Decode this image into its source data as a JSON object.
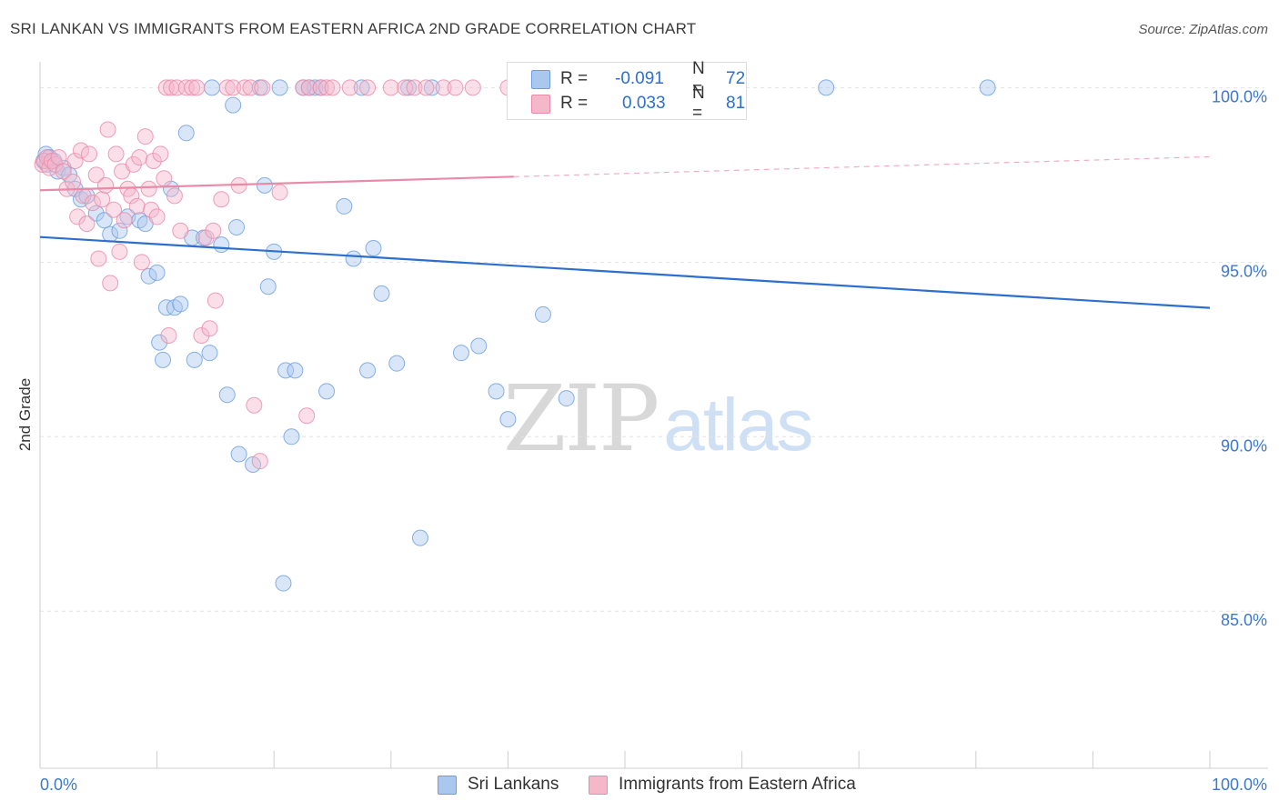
{
  "header": {
    "title": "SRI LANKAN VS IMMIGRANTS FROM EASTERN AFRICA 2ND GRADE CORRELATION CHART",
    "source": "Source: ZipAtlas.com"
  },
  "watermark": {
    "zip": "ZIP",
    "atlas": "atlas"
  },
  "legend": {
    "rows": [
      {
        "label": "R =",
        "r": "-0.091",
        "n_label": "N =",
        "n": "72",
        "color": "#aac8ee"
      },
      {
        "label": "R =",
        "r": "0.033",
        "n_label": "N =",
        "n": "81",
        "color": "#f5b8cb"
      }
    ]
  },
  "chart_data": {
    "type": "scatter",
    "title": "SRI LANKAN VS IMMIGRANTS FROM EASTERN AFRICA 2ND GRADE CORRELATION CHART",
    "xlabel": "",
    "ylabel": "2nd Grade",
    "xlim": [
      0,
      100
    ],
    "ylim": [
      80.5,
      101.0
    ],
    "x_tick_labels": [
      "0.0%",
      "100.0%"
    ],
    "y_ticks": [
      85,
      90,
      95,
      100
    ],
    "y_tick_labels": [
      "85.0%",
      "90.0%",
      "95.0%",
      "100.0%"
    ],
    "grid": true,
    "legend_position": "bottom-center",
    "series": [
      {
        "name": "Sri Lankans",
        "color": "#6a9ee0",
        "fill": "#aac8ee",
        "R": -0.091,
        "N": 72,
        "trend": {
          "x0": 0,
          "y0": 95.72,
          "x1": 100,
          "y1": 93.69,
          "dashed_from": null
        },
        "points": [
          [
            0.3,
            97.9
          ],
          [
            0.5,
            98.1
          ],
          [
            0.6,
            97.8
          ],
          [
            0.8,
            98.0
          ],
          [
            1.2,
            97.9
          ],
          [
            1.5,
            97.6
          ],
          [
            2.0,
            97.7
          ],
          [
            2.5,
            97.5
          ],
          [
            3.0,
            97.1
          ],
          [
            3.5,
            96.8
          ],
          [
            4.0,
            96.9
          ],
          [
            4.8,
            96.4
          ],
          [
            5.5,
            96.2
          ],
          [
            6.0,
            95.8
          ],
          [
            6.8,
            95.9
          ],
          [
            7.5,
            96.3
          ],
          [
            8.5,
            96.2
          ],
          [
            9.0,
            96.1
          ],
          [
            9.3,
            94.6
          ],
          [
            10.0,
            94.7
          ],
          [
            10.2,
            92.7
          ],
          [
            10.5,
            92.2
          ],
          [
            10.8,
            93.7
          ],
          [
            11.2,
            97.1
          ],
          [
            11.5,
            93.7
          ],
          [
            12.0,
            93.8
          ],
          [
            12.5,
            98.7
          ],
          [
            13.0,
            95.7
          ],
          [
            13.2,
            92.2
          ],
          [
            14.0,
            95.7
          ],
          [
            14.5,
            92.4
          ],
          [
            14.7,
            100.0
          ],
          [
            15.5,
            95.5
          ],
          [
            16.0,
            91.2
          ],
          [
            16.5,
            99.5
          ],
          [
            16.8,
            96.0
          ],
          [
            17.0,
            89.5
          ],
          [
            18.2,
            89.2
          ],
          [
            18.8,
            100.0
          ],
          [
            19.2,
            97.2
          ],
          [
            19.5,
            94.3
          ],
          [
            20.0,
            95.3
          ],
          [
            20.5,
            100.0
          ],
          [
            21.0,
            91.9
          ],
          [
            21.5,
            90.0
          ],
          [
            21.8,
            91.9
          ],
          [
            22.5,
            100.0
          ],
          [
            23.0,
            100.0
          ],
          [
            23.5,
            100.0
          ],
          [
            24.0,
            100.0
          ],
          [
            24.5,
            91.3
          ],
          [
            26.0,
            96.6
          ],
          [
            26.8,
            95.1
          ],
          [
            27.5,
            100.0
          ],
          [
            28.0,
            91.9
          ],
          [
            28.5,
            95.4
          ],
          [
            29.2,
            94.1
          ],
          [
            30.5,
            92.1
          ],
          [
            31.5,
            100.0
          ],
          [
            32.5,
            87.1
          ],
          [
            33.5,
            100.0
          ],
          [
            36.0,
            92.4
          ],
          [
            37.5,
            92.6
          ],
          [
            39.0,
            91.3
          ],
          [
            40.0,
            90.5
          ],
          [
            41.0,
            100.0
          ],
          [
            41.5,
            100.0
          ],
          [
            43.0,
            93.5
          ],
          [
            45.0,
            91.1
          ],
          [
            67.2,
            100.0
          ],
          [
            81.0,
            100.0
          ],
          [
            20.8,
            85.8
          ]
        ]
      },
      {
        "name": "Immigrants from Eastern Africa",
        "color": "#e98aa8",
        "fill": "#f5b8cb",
        "R": 0.033,
        "N": 81,
        "trend": {
          "x0": 0,
          "y0": 97.06,
          "x1": 100,
          "y1": 98.02,
          "dashed_from": 40.5
        },
        "points": [
          [
            0.2,
            97.8
          ],
          [
            0.4,
            97.9
          ],
          [
            0.6,
            98.0
          ],
          [
            0.8,
            97.7
          ],
          [
            1.0,
            97.9
          ],
          [
            1.3,
            97.8
          ],
          [
            1.6,
            98.0
          ],
          [
            2.0,
            97.6
          ],
          [
            2.3,
            97.1
          ],
          [
            2.8,
            97.3
          ],
          [
            3.0,
            97.9
          ],
          [
            3.2,
            96.3
          ],
          [
            3.5,
            98.2
          ],
          [
            3.7,
            96.9
          ],
          [
            4.0,
            96.1
          ],
          [
            4.2,
            98.1
          ],
          [
            4.5,
            96.7
          ],
          [
            4.8,
            97.5
          ],
          [
            5.0,
            95.1
          ],
          [
            5.3,
            96.8
          ],
          [
            5.6,
            97.2
          ],
          [
            5.8,
            98.8
          ],
          [
            6.0,
            94.4
          ],
          [
            6.3,
            96.5
          ],
          [
            6.5,
            98.1
          ],
          [
            6.8,
            95.3
          ],
          [
            7.0,
            97.6
          ],
          [
            7.2,
            96.2
          ],
          [
            7.5,
            97.1
          ],
          [
            7.8,
            96.9
          ],
          [
            8.0,
            97.8
          ],
          [
            8.3,
            96.6
          ],
          [
            8.5,
            98.0
          ],
          [
            8.7,
            95.0
          ],
          [
            9.0,
            98.6
          ],
          [
            9.3,
            97.1
          ],
          [
            9.5,
            96.5
          ],
          [
            9.7,
            97.9
          ],
          [
            10.0,
            96.3
          ],
          [
            10.3,
            98.1
          ],
          [
            10.6,
            97.4
          ],
          [
            10.8,
            100.0
          ],
          [
            11.0,
            92.9
          ],
          [
            11.2,
            100.0
          ],
          [
            11.5,
            96.9
          ],
          [
            11.7,
            100.0
          ],
          [
            12.0,
            95.9
          ],
          [
            12.5,
            100.0
          ],
          [
            13.0,
            100.0
          ],
          [
            13.4,
            100.0
          ],
          [
            13.8,
            92.9
          ],
          [
            14.2,
            95.7
          ],
          [
            14.5,
            93.1
          ],
          [
            15.0,
            93.9
          ],
          [
            15.5,
            96.8
          ],
          [
            16.0,
            100.0
          ],
          [
            16.5,
            100.0
          ],
          [
            17.0,
            97.2
          ],
          [
            17.5,
            100.0
          ],
          [
            18.0,
            100.0
          ],
          [
            18.3,
            90.9
          ],
          [
            18.8,
            89.3
          ],
          [
            19.0,
            100.0
          ],
          [
            20.5,
            97.0
          ],
          [
            22.5,
            100.0
          ],
          [
            23.0,
            100.0
          ],
          [
            24.0,
            100.0
          ],
          [
            24.5,
            100.0
          ],
          [
            25.0,
            100.0
          ],
          [
            26.5,
            100.0
          ],
          [
            28.0,
            100.0
          ],
          [
            30.0,
            100.0
          ],
          [
            31.2,
            100.0
          ],
          [
            32.0,
            100.0
          ],
          [
            33.0,
            100.0
          ],
          [
            34.5,
            100.0
          ],
          [
            35.5,
            100.0
          ],
          [
            37.0,
            100.0
          ],
          [
            40.0,
            100.0
          ],
          [
            22.8,
            90.6
          ],
          [
            14.8,
            95.9
          ]
        ]
      }
    ]
  }
}
